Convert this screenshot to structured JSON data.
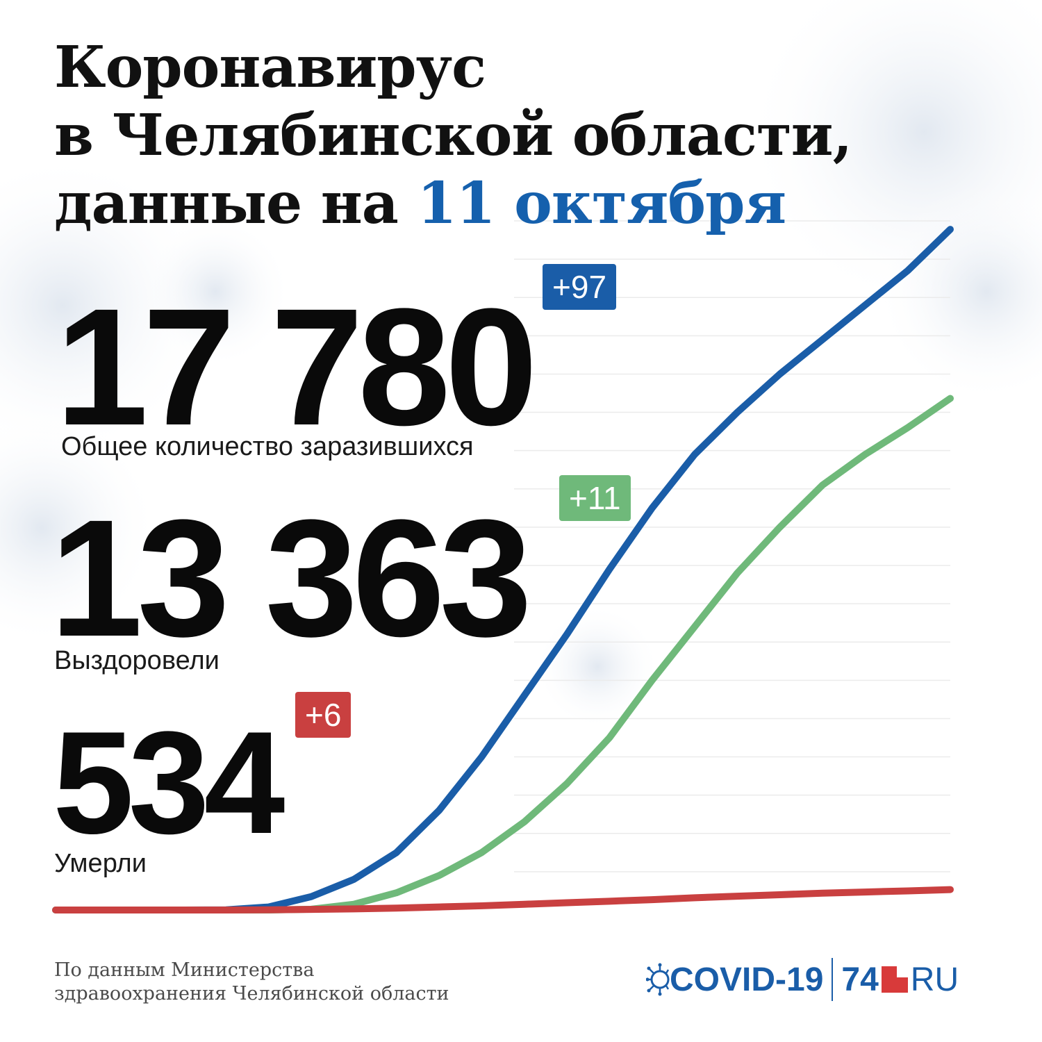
{
  "title": {
    "line1": "Коронавирус",
    "line2": "в Челябинской области,",
    "line3_prefix": "данные на ",
    "line3_date": "11 октября"
  },
  "stats": {
    "infected": {
      "value": "17 780",
      "delta": "+97",
      "label": "Общее количество заразившихся",
      "color": "#1a5da8"
    },
    "recovered": {
      "value": "13 363",
      "delta": "+11",
      "label": "Выздоровели",
      "color": "#6fb97a"
    },
    "deaths": {
      "value": "534",
      "delta": "+6",
      "label": "Умерли",
      "color": "#c94040"
    }
  },
  "source": {
    "line1": "По данным Министерства",
    "line2": "здравоохранения Челябинской области"
  },
  "logo": {
    "covid": "COVID-19",
    "number": "74",
    "ru": "RU"
  },
  "colors": {
    "accent": "#1560ad",
    "infected": "#1a5da8",
    "recovered": "#6fb97a",
    "deaths": "#c94040"
  },
  "chart_data": {
    "type": "line",
    "title": "",
    "xlabel": "",
    "ylabel": "",
    "grid": true,
    "ylim": [
      0,
      18000
    ],
    "x": [
      0,
      10,
      20,
      30,
      40,
      50,
      60,
      70,
      80,
      90,
      100,
      110,
      120,
      130,
      140,
      150,
      160,
      170,
      180,
      190,
      200,
      210
    ],
    "series": [
      {
        "name": "Общее количество заразившихся",
        "color": "#1a5da8",
        "values": [
          0,
          0,
          0,
          0,
          5,
          80,
          350,
          800,
          1500,
          2600,
          4000,
          5600,
          7200,
          8900,
          10500,
          11900,
          13000,
          14000,
          14900,
          15800,
          16700,
          17780
        ]
      },
      {
        "name": "Выздоровели",
        "color": "#6fb97a",
        "values": [
          0,
          0,
          0,
          0,
          0,
          0,
          20,
          150,
          450,
          900,
          1500,
          2300,
          3300,
          4500,
          6000,
          7400,
          8800,
          10000,
          11100,
          11900,
          12600,
          13363
        ]
      },
      {
        "name": "Умерли",
        "color": "#c94040",
        "values": [
          0,
          0,
          0,
          0,
          0,
          5,
          15,
          30,
          50,
          80,
          110,
          150,
          190,
          230,
          270,
          320,
          360,
          400,
          440,
          470,
          500,
          534
        ]
      }
    ]
  }
}
